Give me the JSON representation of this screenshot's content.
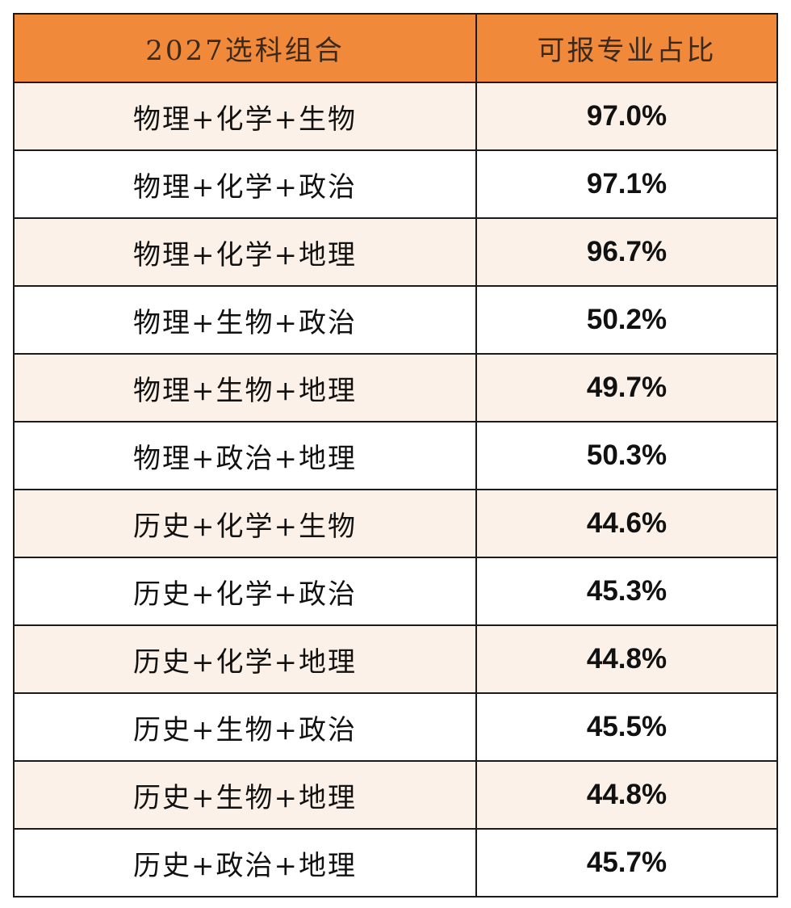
{
  "header": {
    "col1": "2027选科组合",
    "col2": "可报专业占比"
  },
  "rows": [
    {
      "combo": "物理+化学+生物",
      "pct": "97.0%"
    },
    {
      "combo": "物理+化学+政治",
      "pct": "97.1%"
    },
    {
      "combo": "物理+化学+地理",
      "pct": "96.7%"
    },
    {
      "combo": "物理+生物+政治",
      "pct": "50.2%"
    },
    {
      "combo": "物理+生物+地理",
      "pct": "49.7%"
    },
    {
      "combo": "物理+政治+地理",
      "pct": "50.3%"
    },
    {
      "combo": "历史+化学+生物",
      "pct": "44.6%"
    },
    {
      "combo": "历史+化学+政治",
      "pct": "45.3%"
    },
    {
      "combo": "历史+化学+地理",
      "pct": "44.8%"
    },
    {
      "combo": "历史+生物+政治",
      "pct": "45.5%"
    },
    {
      "combo": "历史+生物+地理",
      "pct": "44.8%"
    },
    {
      "combo": "历史+政治+地理",
      "pct": "45.7%"
    }
  ],
  "colors": {
    "header_bg": "#f0893a",
    "shaded_row_bg": "#fcf1e8",
    "border": "#1a1a1a"
  }
}
